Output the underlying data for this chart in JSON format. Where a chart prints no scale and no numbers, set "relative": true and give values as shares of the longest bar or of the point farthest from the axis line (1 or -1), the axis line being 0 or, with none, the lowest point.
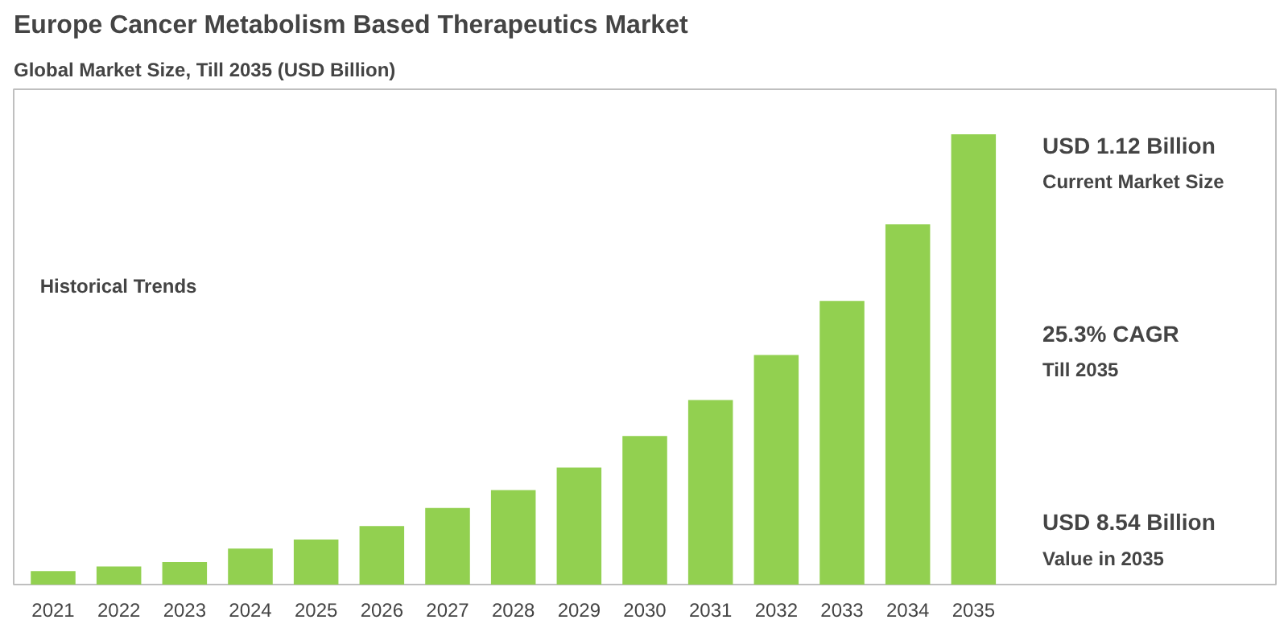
{
  "chart_data": {
    "type": "bar",
    "title": "Europe Cancer Metabolism Based Therapeutics Market",
    "subtitle": "Global Market Size, Till 2035 (USD Billion)",
    "categories": [
      "2021",
      "2022",
      "2023",
      "2024",
      "2025",
      "2026",
      "2027",
      "2028",
      "2029",
      "2030",
      "2031",
      "2032",
      "2033",
      "2034",
      "2035"
    ],
    "values": [
      0.03,
      0.04,
      0.05,
      0.08,
      0.1,
      0.13,
      0.17,
      0.21,
      0.26,
      0.33,
      0.41,
      0.51,
      0.63,
      0.8,
      1.0
    ],
    "color": "#92d050",
    "relative": true,
    "grid": false,
    "annotations": [
      "Historical Trends",
      "USD 1.12 Billion",
      "Current Market Size",
      "25.3% CAGR",
      "Till 2035",
      "USD 8.54 Billion",
      "Value in 2035"
    ]
  }
}
